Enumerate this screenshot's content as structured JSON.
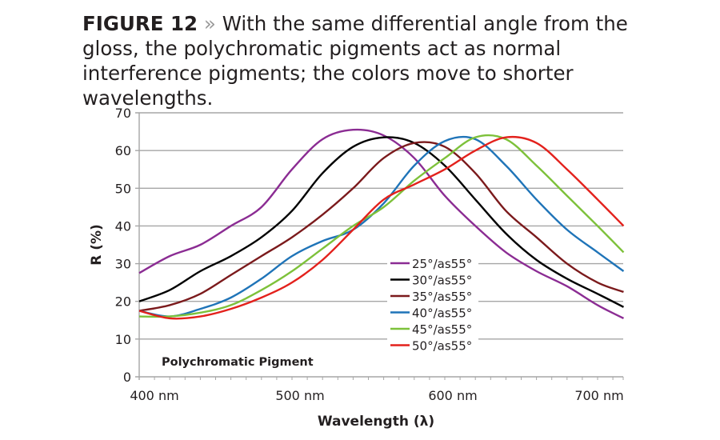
{
  "caption": {
    "figure_label": "FIGURE 12",
    "separator": "»",
    "text": "With the same differential angle from the gloss, the polychromatic pigments act as normal interference pigments; the colors move to shorter wavelengths."
  },
  "chart_data": {
    "type": "line",
    "title": "",
    "xlabel": "Wavelength (λ)",
    "ylabel": "R (%)",
    "xlim": [
      400,
      717
    ],
    "ylim": [
      0,
      70
    ],
    "x_ticks": [
      "400 nm",
      "500 nm",
      "600 nm",
      "700 nm"
    ],
    "y_ticks": [
      0,
      10,
      20,
      30,
      40,
      50,
      60,
      70
    ],
    "grid": "horizontal",
    "annotation": "Polychromatic Pigment",
    "legend_position": "inside-center-bottom",
    "x": [
      400,
      420,
      440,
      460,
      480,
      500,
      520,
      540,
      560,
      580,
      600,
      620,
      640,
      660,
      680,
      700,
      717
    ],
    "series": [
      {
        "name": "25°/as55°",
        "color": "#8b2c93",
        "values": [
          27.5,
          32,
          35,
          40,
          45,
          55,
          63,
          65.5,
          64,
          58,
          48,
          40,
          33,
          28,
          24,
          19,
          15.5
        ]
      },
      {
        "name": "30°/as55°",
        "color": "#000000",
        "values": [
          20,
          23,
          28,
          32,
          37,
          44,
          54,
          61,
          63.5,
          62,
          56,
          47,
          38,
          31,
          26,
          22,
          18.5
        ]
      },
      {
        "name": "35°/as55°",
        "color": "#7b1a1c",
        "values": [
          17.5,
          19,
          22,
          27,
          32,
          37,
          43,
          50,
          58,
          62,
          61,
          54,
          44,
          37,
          30,
          25,
          22.5
        ]
      },
      {
        "name": "40°/as55°",
        "color": "#1f74b8",
        "values": [
          17.5,
          16,
          18,
          21,
          26,
          32,
          36,
          39,
          46,
          56,
          62.5,
          63,
          56,
          47,
          39,
          33,
          28
        ]
      },
      {
        "name": "45°/as55°",
        "color": "#7dc13a",
        "values": [
          16,
          16,
          17,
          19,
          23,
          28,
          34,
          40,
          45,
          52,
          58,
          63.5,
          63,
          56,
          48,
          40,
          33
        ]
      },
      {
        "name": "50°/as55°",
        "color": "#e3211c",
        "values": [
          17.5,
          15.5,
          16,
          18,
          21,
          25,
          31,
          39,
          47,
          51,
          55,
          60,
          63.5,
          62,
          55,
          47,
          40
        ]
      }
    ]
  }
}
